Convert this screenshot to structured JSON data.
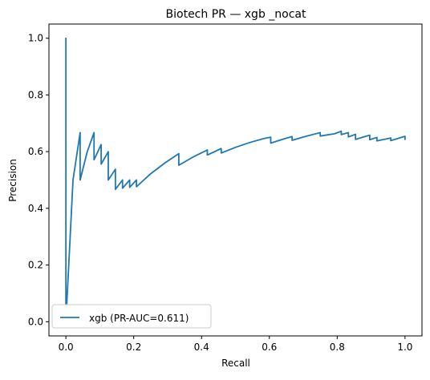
{
  "chart_data": {
    "type": "line",
    "title": "Biotech PR — xgb _nocat",
    "xlabel": "Recall",
    "ylabel": "Precision",
    "xlim": [
      -0.05,
      1.05
    ],
    "ylim": [
      -0.05,
      1.05
    ],
    "xticks": [
      0.0,
      0.2,
      0.4,
      0.6,
      0.8,
      1.0
    ],
    "xtick_labels": [
      "0.0",
      "0.2",
      "0.4",
      "0.6",
      "0.8",
      "1.0"
    ],
    "yticks": [
      0.0,
      0.2,
      0.4,
      0.6,
      0.8,
      1.0
    ],
    "ytick_labels": [
      "0.0",
      "0.2",
      "0.4",
      "0.6",
      "0.8",
      "1.0"
    ],
    "grid": false,
    "legend_position": "lower left",
    "series": [
      {
        "name": "xgb (PR-AUC=0.611)",
        "color": "#1f77b4",
        "points": [
          [
            0.0,
            0.04
          ],
          [
            0.0,
            1.0
          ],
          [
            0.0,
            0.0
          ],
          [
            0.021,
            0.5
          ],
          [
            0.042,
            0.667
          ],
          [
            0.042,
            0.5
          ],
          [
            0.063,
            0.6
          ],
          [
            0.083,
            0.667
          ],
          [
            0.083,
            0.571
          ],
          [
            0.104,
            0.625
          ],
          [
            0.104,
            0.556
          ],
          [
            0.125,
            0.6
          ],
          [
            0.125,
            0.5
          ],
          [
            0.146,
            0.538
          ],
          [
            0.146,
            0.467
          ],
          [
            0.167,
            0.5
          ],
          [
            0.167,
            0.471
          ],
          [
            0.188,
            0.5
          ],
          [
            0.188,
            0.474
          ],
          [
            0.208,
            0.5
          ],
          [
            0.208,
            0.476
          ],
          [
            0.25,
            0.522
          ],
          [
            0.292,
            0.56
          ],
          [
            0.333,
            0.593
          ],
          [
            0.333,
            0.552
          ],
          [
            0.375,
            0.581
          ],
          [
            0.417,
            0.606
          ],
          [
            0.417,
            0.588
          ],
          [
            0.458,
            0.611
          ],
          [
            0.458,
            0.595
          ],
          [
            0.5,
            0.615
          ],
          [
            0.542,
            0.632
          ],
          [
            0.583,
            0.646
          ],
          [
            0.604,
            0.651
          ],
          [
            0.604,
            0.63
          ],
          [
            0.646,
            0.646
          ],
          [
            0.667,
            0.653
          ],
          [
            0.667,
            0.64
          ],
          [
            0.708,
            0.654
          ],
          [
            0.75,
            0.667
          ],
          [
            0.75,
            0.655
          ],
          [
            0.792,
            0.663
          ],
          [
            0.812,
            0.672
          ],
          [
            0.812,
            0.66
          ],
          [
            0.833,
            0.667
          ],
          [
            0.833,
            0.652
          ],
          [
            0.854,
            0.661
          ],
          [
            0.854,
            0.643
          ],
          [
            0.875,
            0.651
          ],
          [
            0.896,
            0.658
          ],
          [
            0.896,
            0.642
          ],
          [
            0.917,
            0.65
          ],
          [
            0.917,
            0.638
          ],
          [
            0.958,
            0.648
          ],
          [
            0.958,
            0.639
          ],
          [
            1.0,
            0.654
          ],
          [
            1.0,
            0.641
          ]
        ]
      }
    ]
  }
}
